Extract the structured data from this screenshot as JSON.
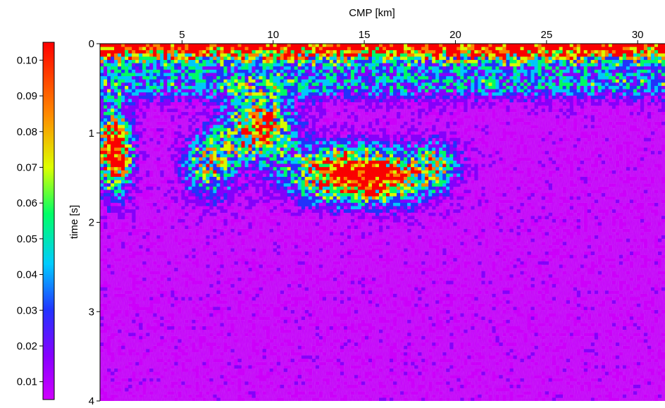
{
  "chart_data": {
    "type": "heatmap",
    "title": "",
    "xlabel": "CMP [km]",
    "ylabel": "time [s]",
    "x_axis_position": "top",
    "xlim": [
      0.5,
      31.5
    ],
    "ylim": [
      4,
      0
    ],
    "xticks": [
      "5",
      "10",
      "15",
      "20",
      "25",
      "30"
    ],
    "xtick_values": [
      5,
      10,
      15,
      20,
      25,
      30
    ],
    "yticks": [
      "0",
      "1",
      "2",
      "3",
      "4"
    ],
    "ytick_values": [
      0,
      1,
      2,
      3,
      4
    ],
    "colorbar": {
      "position": "left",
      "range": [
        0.005,
        0.105
      ],
      "ticks": [
        "0.01",
        "0.02",
        "0.03",
        "0.04",
        "0.05",
        "0.06",
        "0.07",
        "0.08",
        "0.09",
        "0.10"
      ],
      "tick_values": [
        0.01,
        0.02,
        0.03,
        0.04,
        0.05,
        0.06,
        0.07,
        0.08,
        0.09,
        0.1
      ],
      "colormap": "rainbow (violet low → red high)"
    },
    "colors": [
      "#d000ff",
      "#8800ff",
      "#2233ff",
      "#00ccff",
      "#00ff66",
      "#ddff00",
      "#ff8800",
      "#ff0000"
    ],
    "features": [
      {
        "name": "shallow high-amplitude band",
        "time_range_s": [
          0,
          0.4
        ],
        "cmp_range_km": [
          0.5,
          31.5
        ],
        "value": 0.1
      },
      {
        "name": "left edge anomaly",
        "time_range_s": [
          0.6,
          1.8
        ],
        "cmp_range_km": [
          0.5,
          2
        ],
        "value": 0.1
      },
      {
        "name": "central reflector cluster",
        "time_range_s": [
          0.6,
          1.9
        ],
        "cmp_range_km": [
          6,
          19
        ],
        "value": 0.09
      },
      {
        "name": "deep background",
        "time_range_s": [
          2,
          4
        ],
        "cmp_range_km": [
          0.5,
          31.5
        ],
        "value": 0.008
      }
    ]
  }
}
